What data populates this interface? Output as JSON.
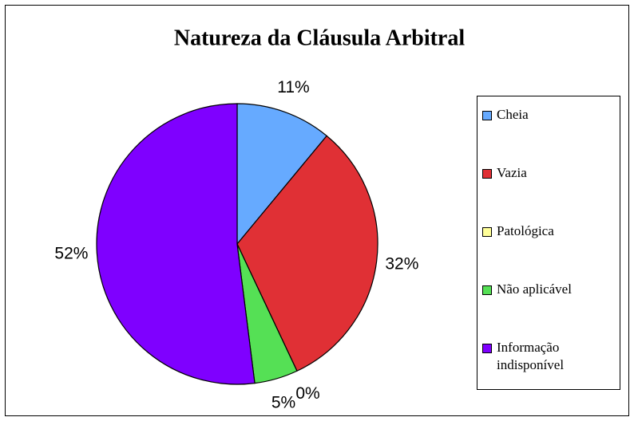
{
  "chart_data": {
    "type": "pie",
    "title": "Natureza da Cláusula Arbitral",
    "categories": [
      "Cheia",
      "Vazia",
      "Patológica",
      "Não aplicável",
      "Informação indisponível"
    ],
    "values": [
      11,
      32,
      0,
      5,
      52
    ],
    "value_labels": [
      "11%",
      "32%",
      "0%",
      "5%",
      "52%"
    ],
    "colors": [
      "#66aaff",
      "#e03035",
      "#ffff99",
      "#55e055",
      "#7f00ff"
    ],
    "legend": "right"
  }
}
